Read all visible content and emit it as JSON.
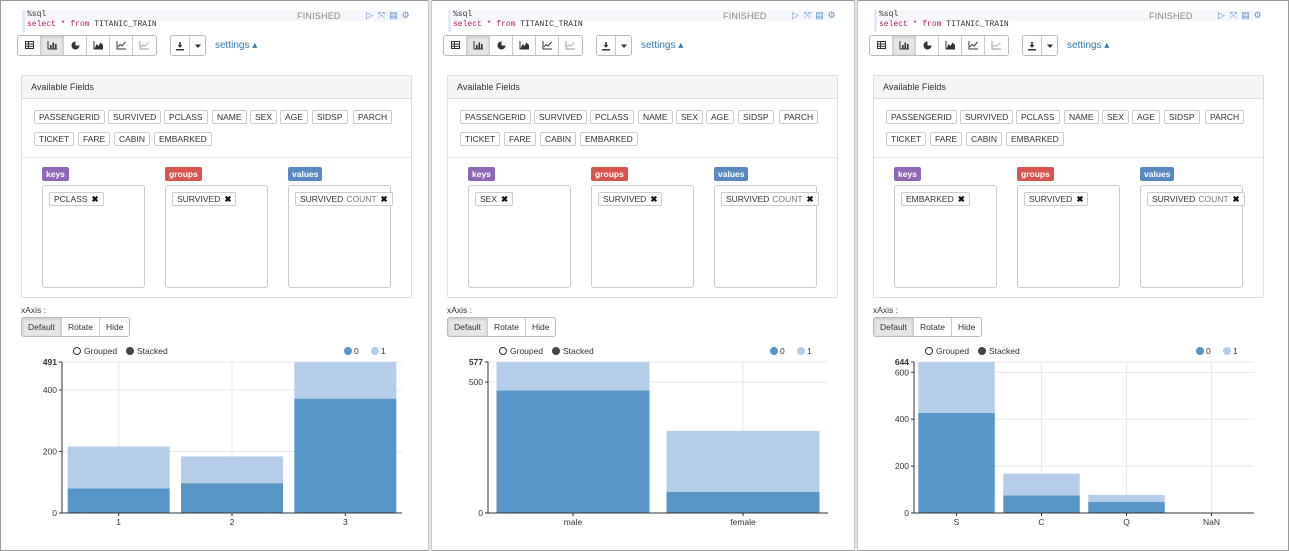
{
  "colors": {
    "keys": "#8e67b5",
    "groups": "#d9534f",
    "values": "#5a89bf",
    "series_0": "#5896c8",
    "series_1": "#b5cde8",
    "link": "#337ab7"
  },
  "common": {
    "code_line1": "%sql",
    "code_select": "select",
    "code_star": "*",
    "code_from": "from",
    "code_table": "TITANIC_TRAIN",
    "status": "FINISHED",
    "settings": "settings ▴",
    "available_fields": "Available Fields",
    "fields": [
      "PASSENGERID",
      "SURVIVED",
      "PCLASS",
      "NAME",
      "SEX",
      "AGE",
      "SIDSP",
      "PARCH",
      "TICKET",
      "FARE",
      "CABIN",
      "EMBARKED"
    ],
    "keys_label": "keys",
    "groups_label": "groups",
    "values_label": "values",
    "xaxis_label": "xAxis :",
    "xaxis_default": "Default",
    "xaxis_rotate": "Rotate",
    "xaxis_hide": "Hide",
    "grouped": "Grouped",
    "stacked": "Stacked",
    "legend": [
      "0",
      "1"
    ],
    "toolbar_icons": [
      "table-icon",
      "bar-chart-icon",
      "pie-chart-icon",
      "area-chart-icon",
      "line-chart-icon",
      "scatter-chart-icon"
    ],
    "ctl_icons": [
      "run-icon",
      "expand-icon",
      "book-icon",
      "gear-icon"
    ]
  },
  "panels": [
    {
      "key": "PCLASS",
      "group": "SURVIVED",
      "value": "SURVIVED",
      "agg": "COUNT"
    },
    {
      "key": "SEX",
      "group": "SURVIVED",
      "value": "SURVIVED",
      "agg": "COUNT"
    },
    {
      "key": "EMBARKED",
      "group": "SURVIVED",
      "value": "SURVIVED",
      "agg": "COUNT"
    }
  ],
  "chart_data": [
    {
      "type": "bar",
      "stacked": true,
      "categories": [
        "1",
        "2",
        "3"
      ],
      "series": [
        {
          "name": "0",
          "values": [
            80,
            97,
            372
          ]
        },
        {
          "name": "1",
          "values": [
            136,
            87,
            119
          ]
        }
      ],
      "ylim": [
        0,
        491
      ],
      "yticks": [
        0,
        200,
        400,
        491
      ],
      "ytick_labels": [
        "0",
        "200",
        "400",
        "491"
      ]
    },
    {
      "type": "bar",
      "stacked": true,
      "categories": [
        "male",
        "female"
      ],
      "series": [
        {
          "name": "0",
          "values": [
            468,
            81
          ]
        },
        {
          "name": "1",
          "values": [
            109,
            233
          ]
        }
      ],
      "ylim": [
        0,
        577
      ],
      "yticks": [
        0,
        500,
        577
      ],
      "ytick_labels": [
        "0",
        "500",
        "577"
      ]
    },
    {
      "type": "bar",
      "stacked": true,
      "categories": [
        "S",
        "C",
        "Q",
        "NaN"
      ],
      "series": [
        {
          "name": "0",
          "values": [
            427,
            75,
            47,
            0
          ]
        },
        {
          "name": "1",
          "values": [
            217,
            93,
            30,
            0
          ]
        }
      ],
      "ylim": [
        0,
        644
      ],
      "yticks": [
        0,
        200,
        400,
        600,
        644
      ],
      "ytick_labels": [
        "0",
        "200",
        "400",
        "600",
        "644"
      ]
    }
  ]
}
